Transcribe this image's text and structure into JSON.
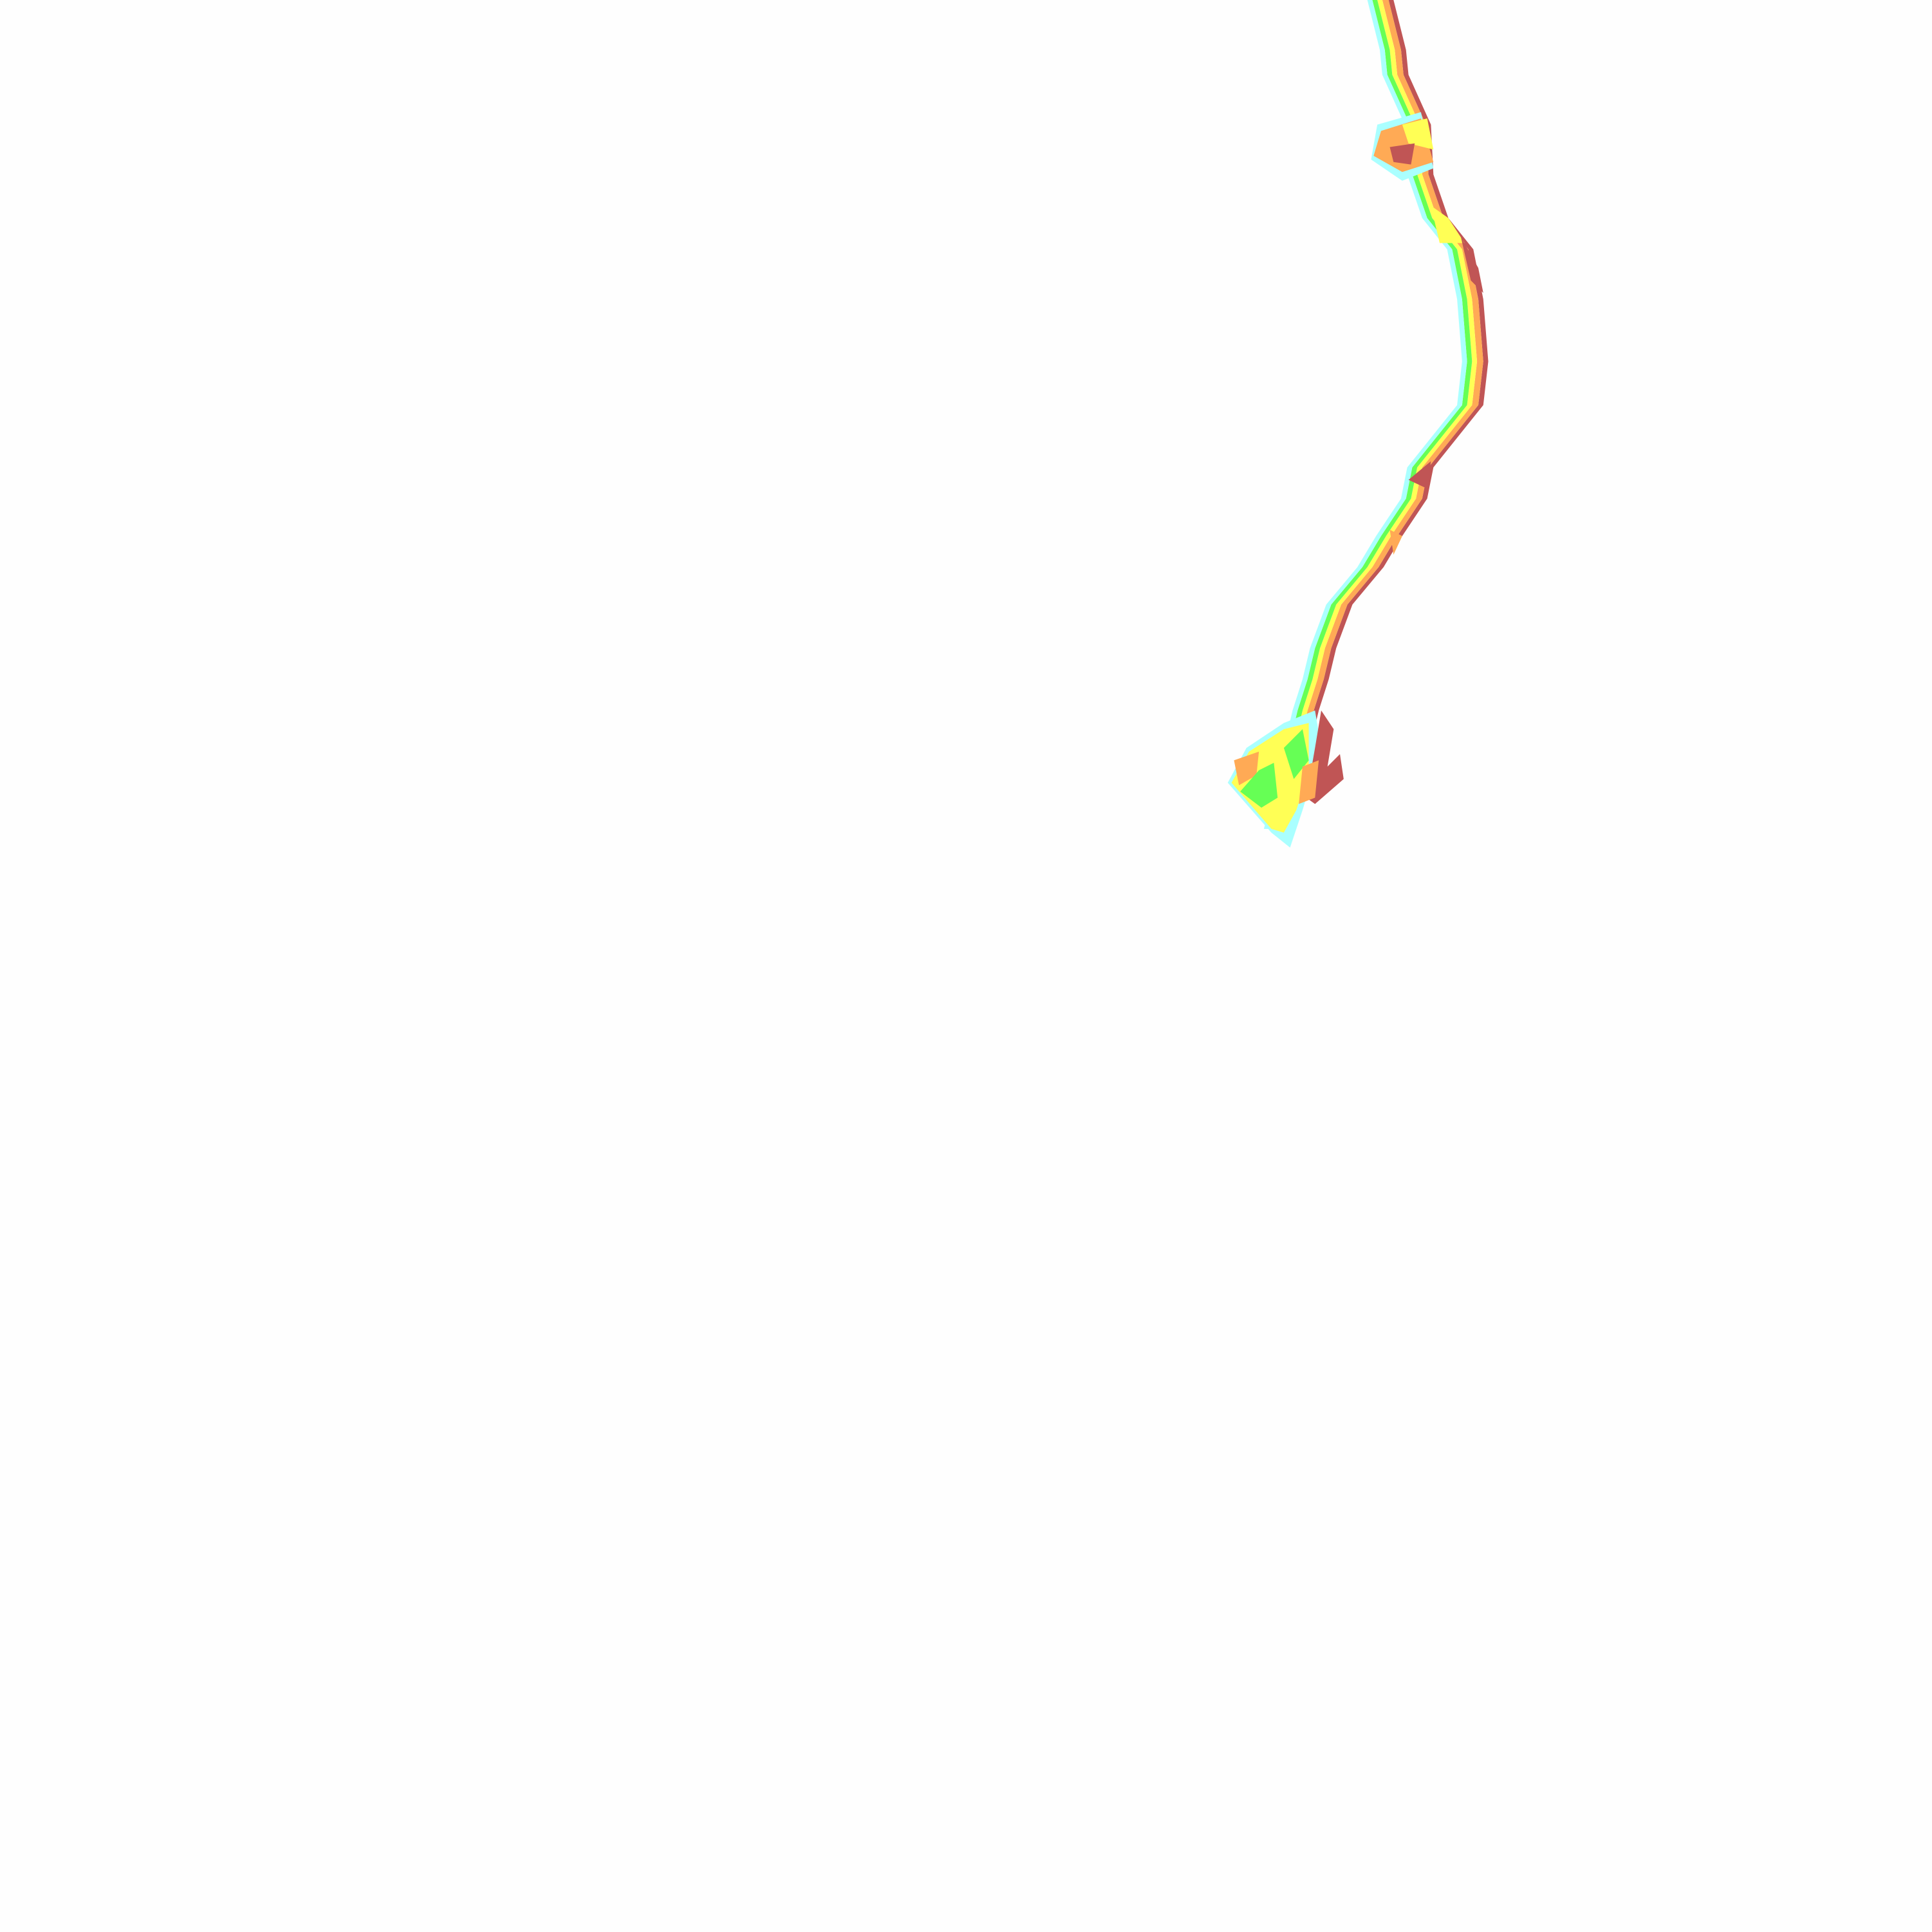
{
  "map": {
    "background": "#fefefe",
    "zone_colors": {
      "zone_1": "#aaffff",
      "zone_2": "#66ff55",
      "zone_3": "#ffff55",
      "zone_4": "#ffaa55",
      "zone_5": "#c05555"
    }
  }
}
